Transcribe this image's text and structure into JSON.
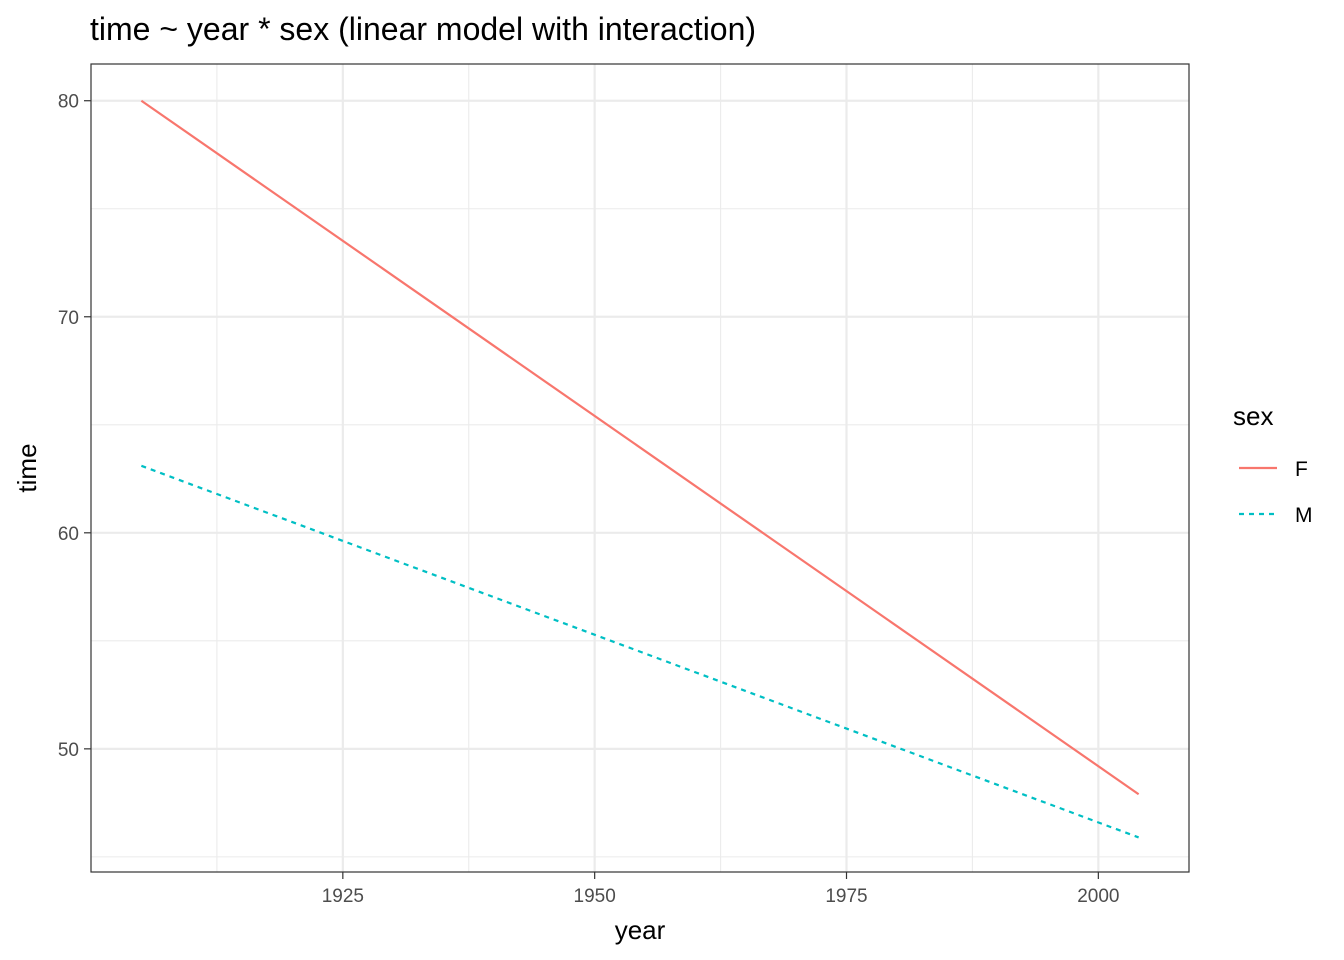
{
  "chart_data": {
    "type": "line",
    "title": "time ~ year * sex (linear model with interaction)",
    "xlabel": "year",
    "ylabel": "time",
    "xlim": [
      1900,
      2009
    ],
    "ylim": [
      44.3,
      81.7
    ],
    "x_ticks": [
      1925,
      1950,
      1975,
      2000
    ],
    "x_tick_labels": [
      "1925",
      "1950",
      "1975",
      "2000"
    ],
    "x_minor_ticks": [
      1912.5,
      1937.5,
      1962.5,
      1987.5
    ],
    "y_ticks": [
      50,
      60,
      70,
      80
    ],
    "y_tick_labels": [
      "50",
      "60",
      "70",
      "80"
    ],
    "y_minor_ticks": [
      45,
      55,
      65,
      75
    ],
    "grid": true,
    "theme": "bw",
    "legend": {
      "title": "sex",
      "position": "right",
      "entries": [
        {
          "label": "F",
          "color": "#F8766D",
          "linetype": "solid"
        },
        {
          "label": "M",
          "color": "#00BFC4",
          "linetype": "dashed"
        }
      ]
    },
    "series": [
      {
        "name": "F",
        "color": "#F8766D",
        "linetype": "solid",
        "x": [
          1905,
          2004
        ],
        "y": [
          80.0,
          47.9
        ]
      },
      {
        "name": "M",
        "color": "#00BFC4",
        "linetype": "dashed",
        "x": [
          1905,
          2004
        ],
        "y": [
          63.1,
          45.9
        ]
      }
    ]
  }
}
